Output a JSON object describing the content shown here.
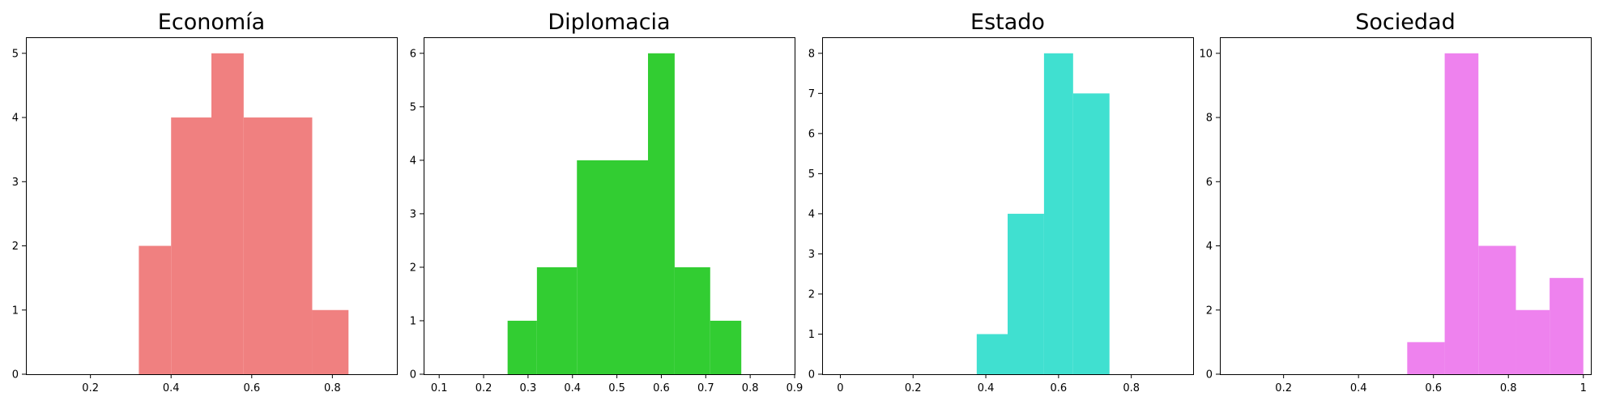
{
  "chart_data": [
    {
      "type": "histogram",
      "title": "Economía",
      "color": "#f08080",
      "xlim": [
        0.04,
        0.96
      ],
      "ylim": [
        0,
        5.25
      ],
      "xticks": [
        0.2,
        0.4,
        0.6,
        0.8
      ],
      "yticks": [
        0,
        1,
        2,
        3,
        4,
        5
      ],
      "bins": [
        {
          "x0": 0.32,
          "x1": 0.4,
          "count": 2
        },
        {
          "x0": 0.4,
          "x1": 0.5,
          "count": 4
        },
        {
          "x0": 0.5,
          "x1": 0.58,
          "count": 5
        },
        {
          "x0": 0.58,
          "x1": 0.75,
          "count": 4
        },
        {
          "x0": 0.75,
          "x1": 0.84,
          "count": 1
        }
      ]
    },
    {
      "type": "histogram",
      "title": "Diplomacia",
      "color": "#32cd32",
      "xlim": [
        0.065,
        0.9
      ],
      "ylim": [
        0,
        6.3
      ],
      "xticks": [
        0.1,
        0.2,
        0.3,
        0.4,
        0.5,
        0.6,
        0.7,
        0.8,
        0.9
      ],
      "yticks": [
        0,
        1,
        2,
        3,
        4,
        5,
        6
      ],
      "bins": [
        {
          "x0": 0.254,
          "x1": 0.32,
          "count": 1
        },
        {
          "x0": 0.32,
          "x1": 0.41,
          "count": 2
        },
        {
          "x0": 0.41,
          "x1": 0.57,
          "count": 4
        },
        {
          "x0": 0.57,
          "x1": 0.63,
          "count": 6
        },
        {
          "x0": 0.63,
          "x1": 0.71,
          "count": 2
        },
        {
          "x0": 0.71,
          "x1": 0.78,
          "count": 1
        }
      ]
    },
    {
      "type": "histogram",
      "title": "Estado",
      "color": "#40e0d0",
      "xlim": [
        -0.05,
        0.97
      ],
      "ylim": [
        0,
        8.4
      ],
      "xticks": [
        0.0,
        0.2,
        0.4,
        0.6,
        0.8
      ],
      "yticks": [
        0,
        1,
        2,
        3,
        4,
        5,
        6,
        7,
        8
      ],
      "bins": [
        {
          "x0": 0.375,
          "x1": 0.46,
          "count": 1
        },
        {
          "x0": 0.46,
          "x1": 0.56,
          "count": 4
        },
        {
          "x0": 0.56,
          "x1": 0.64,
          "count": 8
        },
        {
          "x0": 0.64,
          "x1": 0.74,
          "count": 7
        }
      ]
    },
    {
      "type": "histogram",
      "title": "Sociedad",
      "color": "#ee82ee",
      "xlim": [
        0.03,
        1.02
      ],
      "ylim": [
        0,
        10.5
      ],
      "xticks": [
        0.2,
        0.4,
        0.6,
        0.8,
        1.0
      ],
      "yticks": [
        0,
        2,
        4,
        6,
        8,
        10
      ],
      "bins": [
        {
          "x0": 0.53,
          "x1": 0.63,
          "count": 1
        },
        {
          "x0": 0.63,
          "x1": 0.72,
          "count": 10
        },
        {
          "x0": 0.72,
          "x1": 0.82,
          "count": 4
        },
        {
          "x0": 0.82,
          "x1": 0.91,
          "count": 2
        },
        {
          "x0": 0.91,
          "x1": 1.0,
          "count": 3
        }
      ]
    }
  ]
}
